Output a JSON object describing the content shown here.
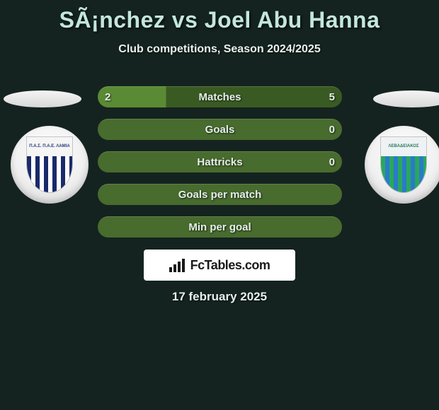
{
  "title": "SÃ¡nchez vs Joel Abu Hanna",
  "subtitle": "Club competitions, Season 2024/2025",
  "date": "17 february 2025",
  "logo_text": "FcTables.com",
  "colors": {
    "background": "#14231f",
    "title_color": "#c3e6dd",
    "text_color": "#e4efea",
    "bar_left": "#5b8a34",
    "bar_right": "#3a5a23",
    "bar_neutral": "#486b2e"
  },
  "teams": {
    "left": {
      "name": "Lamia",
      "crest_text": "Π.Α.Σ. Π.Α.Ε. ΛΑΜΙΑ",
      "stripe_a": "#1a2a6a",
      "stripe_b": "#ffffff"
    },
    "right": {
      "name": "Levadiakos",
      "crest_text": "ΛΕΒΑΔΕΙΑΚΟΣ",
      "stripe_a": "#2aa85a",
      "stripe_b": "#2a7acc"
    }
  },
  "bars": [
    {
      "label": "Matches",
      "left": "2",
      "right": "5",
      "split": 28
    },
    {
      "label": "Goals",
      "left": "",
      "right": "0",
      "split": 0
    },
    {
      "label": "Hattricks",
      "left": "",
      "right": "0",
      "split": 0
    },
    {
      "label": "Goals per match",
      "left": "",
      "right": "",
      "split": 0
    },
    {
      "label": "Min per goal",
      "left": "",
      "right": "",
      "split": 0
    }
  ]
}
